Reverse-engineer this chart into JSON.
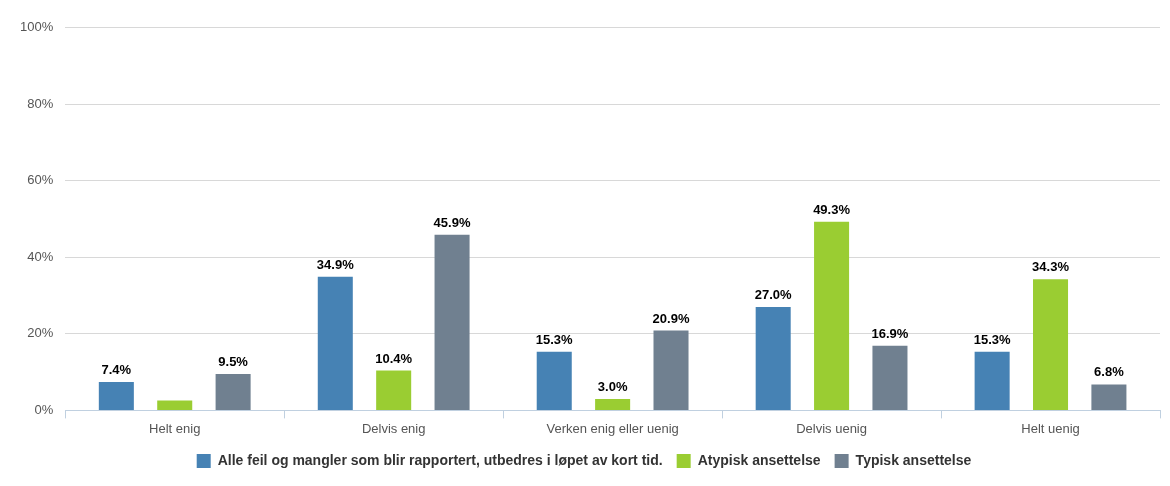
{
  "chart_data": {
    "type": "bar",
    "categories": [
      "Helt enig",
      "Delvis enig",
      "Verken enig eller uenig",
      "Delvis uenig",
      "Helt uenig"
    ],
    "series": [
      {
        "name": "Alle feil og mangler som blir rapportert, utbedres i løpet av kort tid.",
        "color": "#4682b4",
        "values": [
          7.4,
          34.9,
          15.3,
          27.0,
          15.3
        ],
        "value_labels": [
          "7.4%",
          "34.9%",
          "15.3%",
          "27.0%",
          "15.3%"
        ]
      },
      {
        "name": "Atypisk ansettelse",
        "color": "#9acd32",
        "values": [
          2.6,
          10.4,
          3.0,
          49.3,
          34.3
        ],
        "value_labels": [
          null,
          "10.4%",
          "3.0%",
          "49.3%",
          "34.3%"
        ]
      },
      {
        "name": "Typisk ansettelse",
        "color": "#708090",
        "values": [
          9.5,
          45.9,
          20.9,
          16.9,
          6.8
        ],
        "value_labels": [
          "9.5%",
          "45.9%",
          "20.9%",
          "16.9%",
          "6.8%"
        ]
      }
    ],
    "ylim": [
      0,
      100
    ],
    "yticks": [
      {
        "value": 0,
        "label": "0%"
      },
      {
        "value": 20,
        "label": "20%"
      },
      {
        "value": 40,
        "label": "40%"
      },
      {
        "value": 60,
        "label": "60%"
      },
      {
        "value": 80,
        "label": "80%"
      },
      {
        "value": 100,
        "label": "100%"
      }
    ],
    "grid": "y",
    "legend": "bottom"
  }
}
